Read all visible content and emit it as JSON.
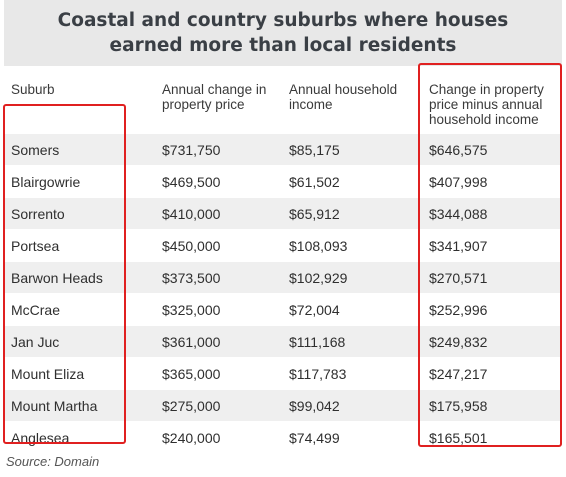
{
  "title": "Coastal and country suburbs where houses earned more than local residents",
  "headers": {
    "suburb": "Suburb",
    "price": "Annual change in property price",
    "income": "Annual household income",
    "change": "Change in property price minus annual household income"
  },
  "rows": [
    {
      "suburb": "Somers",
      "price": "$731,750",
      "income": "$85,175",
      "change": "$646,575"
    },
    {
      "suburb": "Blairgowrie",
      "price": "$469,500",
      "income": "$61,502",
      "change": "$407,998"
    },
    {
      "suburb": "Sorrento",
      "price": "$410,000",
      "income": "$65,912",
      "change": "$344,088"
    },
    {
      "suburb": "Portsea",
      "price": "$450,000",
      "income": "$108,093",
      "change": "$341,907"
    },
    {
      "suburb": "Barwon Heads",
      "price": "$373,500",
      "income": "$102,929",
      "change": "$270,571"
    },
    {
      "suburb": "McCrae",
      "price": "$325,000",
      "income": "$72,004",
      "change": "$252,996"
    },
    {
      "suburb": "Jan Juc",
      "price": "$361,000",
      "income": "$111,168",
      "change": "$249,832"
    },
    {
      "suburb": "Mount Eliza",
      "price": "$365,000",
      "income": "$117,783",
      "change": "$247,217"
    },
    {
      "suburb": "Mount Martha",
      "price": "$275,000",
      "income": "$99,042",
      "change": "$175,958"
    },
    {
      "suburb": "Anglesea",
      "price": "$240,000",
      "income": "$74,499",
      "change": "$165,501"
    }
  ],
  "source": "Source: Domain",
  "colors": {
    "title_bg": "#e8e8e8",
    "row_shade": "#efefef",
    "highlight": "#e02020"
  }
}
